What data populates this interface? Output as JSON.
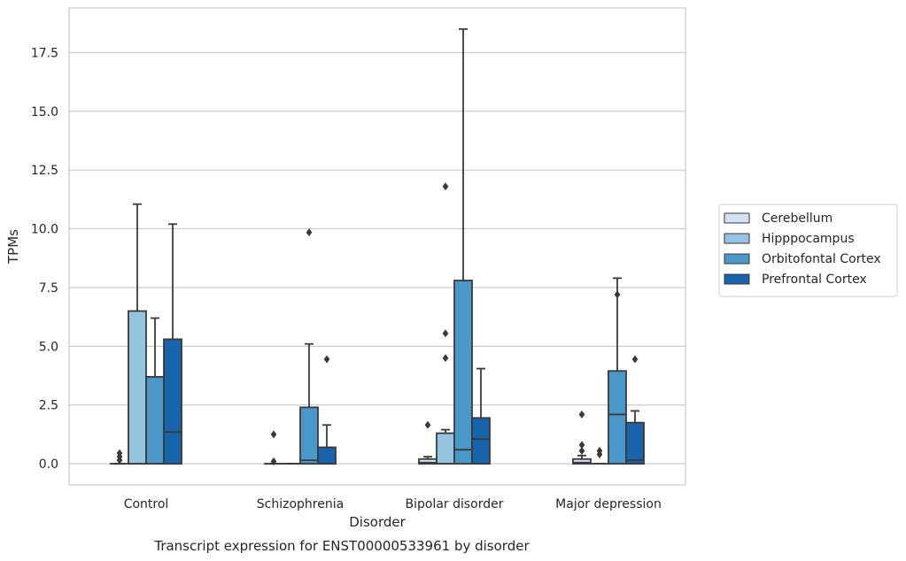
{
  "chart_data": {
    "type": "box",
    "title": "",
    "caption": "Transcript expression for ENST00000533961 by disorder",
    "xlabel": "Disorder",
    "ylabel": "TPMs",
    "ylim": [
      -0.9,
      19.4
    ],
    "yticks": [
      "0.0",
      "2.5",
      "5.0",
      "7.5",
      "10.0",
      "12.5",
      "15.0",
      "17.5"
    ],
    "ytick_values": [
      0,
      2.5,
      5,
      7.5,
      10,
      12.5,
      15,
      17.5
    ],
    "grid": "horizontal",
    "legend_position": "right",
    "categories": [
      "Control",
      "Schizophrenia",
      "Bipolar disorder",
      "Major depression"
    ],
    "series": [
      {
        "name": "Cerebellum",
        "color": "#d0e1f2",
        "boxes": [
          {
            "q1": 0.0,
            "median": 0.0,
            "q3": 0.0,
            "whisker_low": 0.0,
            "whisker_high": 0.0,
            "outliers": [
              0.45,
              0.3,
              0.15
            ]
          },
          {
            "q1": 0.0,
            "median": 0.0,
            "q3": 0.0,
            "whisker_low": 0.0,
            "whisker_high": 0.0,
            "outliers": [
              1.25,
              0.1
            ]
          },
          {
            "q1": 0.0,
            "median": 0.05,
            "q3": 0.2,
            "whisker_low": 0.0,
            "whisker_high": 0.3,
            "outliers": [
              1.65
            ]
          },
          {
            "q1": 0.0,
            "median": 0.05,
            "q3": 0.2,
            "whisker_low": 0.0,
            "whisker_high": 0.35,
            "outliers": [
              2.1,
              0.8,
              0.55
            ]
          }
        ]
      },
      {
        "name": "Hipppocampus",
        "color": "#94c4df",
        "boxes": [
          {
            "q1": 0.0,
            "median": 0.0,
            "q3": 6.5,
            "whisker_low": 0.0,
            "whisker_high": 11.05,
            "outliers": []
          },
          {
            "q1": 0.0,
            "median": 0.0,
            "q3": 0.0,
            "whisker_low": 0.0,
            "whisker_high": 0.0,
            "outliers": []
          },
          {
            "q1": 0.0,
            "median": 0.0,
            "q3": 1.3,
            "whisker_low": 0.0,
            "whisker_high": 1.45,
            "outliers": [
              11.8,
              5.55,
              4.5
            ]
          },
          {
            "q1": 0.0,
            "median": 0.0,
            "q3": 0.0,
            "whisker_low": 0.0,
            "whisker_high": 0.0,
            "outliers": [
              0.55,
              0.4
            ]
          }
        ]
      },
      {
        "name": "Orbitofontal Cortex",
        "color": "#4a98c9",
        "boxes": [
          {
            "q1": 0.0,
            "median": 0.0,
            "q3": 3.7,
            "whisker_low": 0.0,
            "whisker_high": 6.2,
            "outliers": []
          },
          {
            "q1": 0.0,
            "median": 0.15,
            "q3": 2.4,
            "whisker_low": 0.0,
            "whisker_high": 5.1,
            "outliers": [
              9.85
            ]
          },
          {
            "q1": 0.0,
            "median": 0.6,
            "q3": 7.8,
            "whisker_low": 0.0,
            "whisker_high": 18.5,
            "outliers": []
          },
          {
            "q1": 0.0,
            "median": 2.1,
            "q3": 3.95,
            "whisker_low": 0.0,
            "whisker_high": 7.9,
            "outliers": [
              7.2
            ]
          }
        ]
      },
      {
        "name": "Prefrontal Cortex",
        "color": "#1764ab",
        "boxes": [
          {
            "q1": 0.0,
            "median": 1.35,
            "q3": 5.3,
            "whisker_low": 0.0,
            "whisker_high": 10.2,
            "outliers": []
          },
          {
            "q1": 0.0,
            "median": 0.0,
            "q3": 0.7,
            "whisker_low": 0.0,
            "whisker_high": 1.65,
            "outliers": [
              4.45
            ]
          },
          {
            "q1": 0.0,
            "median": 1.05,
            "q3": 1.95,
            "whisker_low": 0.0,
            "whisker_high": 4.05,
            "outliers": []
          },
          {
            "q1": 0.0,
            "median": 0.15,
            "q3": 1.75,
            "whisker_low": 0.0,
            "whisker_high": 2.25,
            "outliers": [
              4.45
            ]
          }
        ]
      }
    ]
  }
}
